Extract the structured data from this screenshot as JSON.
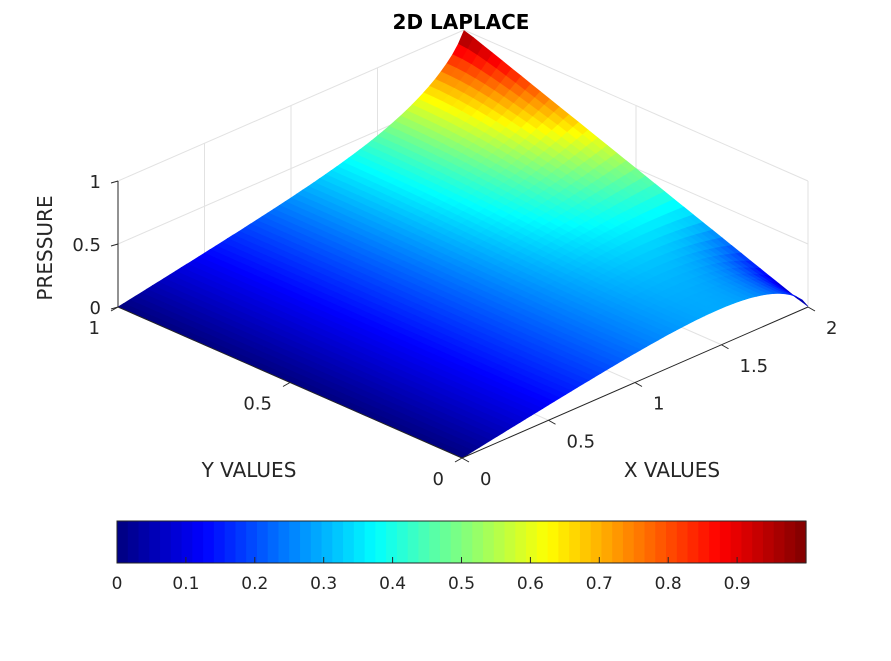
{
  "chart_data": {
    "type": "surface",
    "title": "2D LAPLACE",
    "xlabel": "X VALUES",
    "ylabel": "Y VALUES",
    "zlabel": "PRESSURE",
    "xlim": [
      0,
      2
    ],
    "ylim": [
      0,
      1
    ],
    "zlim": [
      0,
      1
    ],
    "x_ticks": [
      "0",
      "0.5",
      "1",
      "1.5",
      "2"
    ],
    "y_ticks": [
      "0",
      "0.5",
      "1"
    ],
    "z_ticks": [
      "0",
      "0.5",
      "1"
    ],
    "colormap": "jet",
    "colorbar": {
      "location": "bottom",
      "range": [
        0,
        1
      ],
      "ticks": [
        "0",
        "0.1",
        "0.2",
        "0.3",
        "0.4",
        "0.5",
        "0.6",
        "0.7",
        "0.8",
        "0.9"
      ]
    },
    "boundary_conditions": {
      "p_at_x0": 0,
      "p_at_x2": "y",
      "dp_dy_at_y0": 0,
      "dp_dy_at_y1": 0
    },
    "grid": true
  }
}
